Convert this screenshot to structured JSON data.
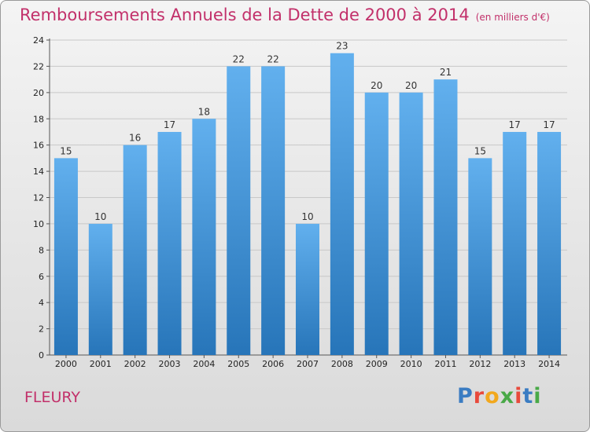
{
  "chart_data": {
    "type": "bar",
    "title": "Remboursements Annuels de la Dette de 2000 à 2014",
    "subtitle": "(en milliers d'€)",
    "categories": [
      "2000",
      "2001",
      "2002",
      "2003",
      "2004",
      "2005",
      "2006",
      "2007",
      "2008",
      "2009",
      "2010",
      "2011",
      "2012",
      "2013",
      "2014"
    ],
    "values": [
      15,
      10,
      16,
      17,
      18,
      22,
      22,
      10,
      23,
      20,
      20,
      21,
      15,
      17,
      17
    ],
    "ylim": [
      0,
      24
    ],
    "yticks": [
      0,
      2,
      4,
      6,
      8,
      10,
      12,
      14,
      16,
      18,
      20,
      22,
      24
    ],
    "grid": true,
    "bar_color": "#3d8fd6",
    "title_color": "#c2306a"
  },
  "location_label": "FLEURY",
  "brand": {
    "letters": [
      "P",
      "r",
      "o",
      "x",
      "i",
      "t",
      "i"
    ],
    "colors": [
      "#3a7cc2",
      "#e84a3c",
      "#f2a81d",
      "#49a947",
      "#e84a3c",
      "#3a7cc2",
      "#49a947"
    ]
  }
}
